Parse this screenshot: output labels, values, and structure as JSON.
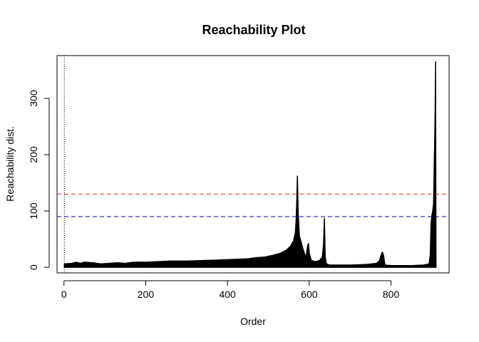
{
  "chart_data": {
    "type": "bar",
    "title": "Reachability Plot",
    "xlabel": "Order",
    "ylabel": "Reachability dist.",
    "xlim": [
      -17,
      942
    ],
    "ylim": [
      -10,
      376
    ],
    "xticks": [
      0,
      200,
      400,
      600,
      800
    ],
    "yticks": [
      0,
      100,
      200,
      300
    ],
    "grid": false,
    "bar_color": "#000000",
    "reachability_profile": [
      [
        1,
        6
      ],
      [
        20,
        7
      ],
      [
        30,
        9
      ],
      [
        40,
        7
      ],
      [
        50,
        9
      ],
      [
        70,
        8
      ],
      [
        90,
        6
      ],
      [
        110,
        7
      ],
      [
        130,
        8
      ],
      [
        150,
        7
      ],
      [
        170,
        9
      ],
      [
        200,
        9
      ],
      [
        230,
        10
      ],
      [
        260,
        11
      ],
      [
        300,
        11
      ],
      [
        340,
        12
      ],
      [
        380,
        13
      ],
      [
        420,
        14
      ],
      [
        450,
        15
      ],
      [
        470,
        17
      ],
      [
        490,
        18
      ],
      [
        510,
        21
      ],
      [
        530,
        25
      ],
      [
        545,
        31
      ],
      [
        555,
        38
      ],
      [
        562,
        48
      ],
      [
        566,
        62
      ],
      [
        568,
        85
      ],
      [
        570,
        130
      ],
      [
        571,
        162
      ],
      [
        573,
        95
      ],
      [
        576,
        55
      ],
      [
        580,
        45
      ],
      [
        585,
        32
      ],
      [
        590,
        20
      ],
      [
        593,
        22
      ],
      [
        596,
        38
      ],
      [
        598,
        42
      ],
      [
        600,
        25
      ],
      [
        605,
        12
      ],
      [
        615,
        10
      ],
      [
        625,
        12
      ],
      [
        632,
        18
      ],
      [
        635,
        40
      ],
      [
        637,
        87
      ],
      [
        639,
        18
      ],
      [
        642,
        6
      ],
      [
        650,
        4
      ],
      [
        700,
        4
      ],
      [
        740,
        5
      ],
      [
        765,
        7
      ],
      [
        772,
        12
      ],
      [
        776,
        22
      ],
      [
        779,
        27
      ],
      [
        782,
        20
      ],
      [
        785,
        4
      ],
      [
        800,
        3
      ],
      [
        850,
        3
      ],
      [
        880,
        4
      ],
      [
        893,
        6
      ],
      [
        896,
        22
      ],
      [
        898,
        78
      ],
      [
        900,
        92
      ],
      [
        902,
        100
      ],
      [
        904,
        112
      ],
      [
        905,
        150
      ],
      [
        906,
        195
      ],
      [
        907,
        230
      ],
      [
        908,
        278
      ],
      [
        909,
        365
      ],
      [
        910,
        5
      ]
    ],
    "reference_lines": [
      {
        "y": 130,
        "color": "#cc3333",
        "style": "dashed"
      },
      {
        "y": 90,
        "color": "#0000cc",
        "style": "dashed"
      }
    ],
    "vertical_line": {
      "x": 1,
      "color": "#000000",
      "style": "dotted"
    }
  }
}
